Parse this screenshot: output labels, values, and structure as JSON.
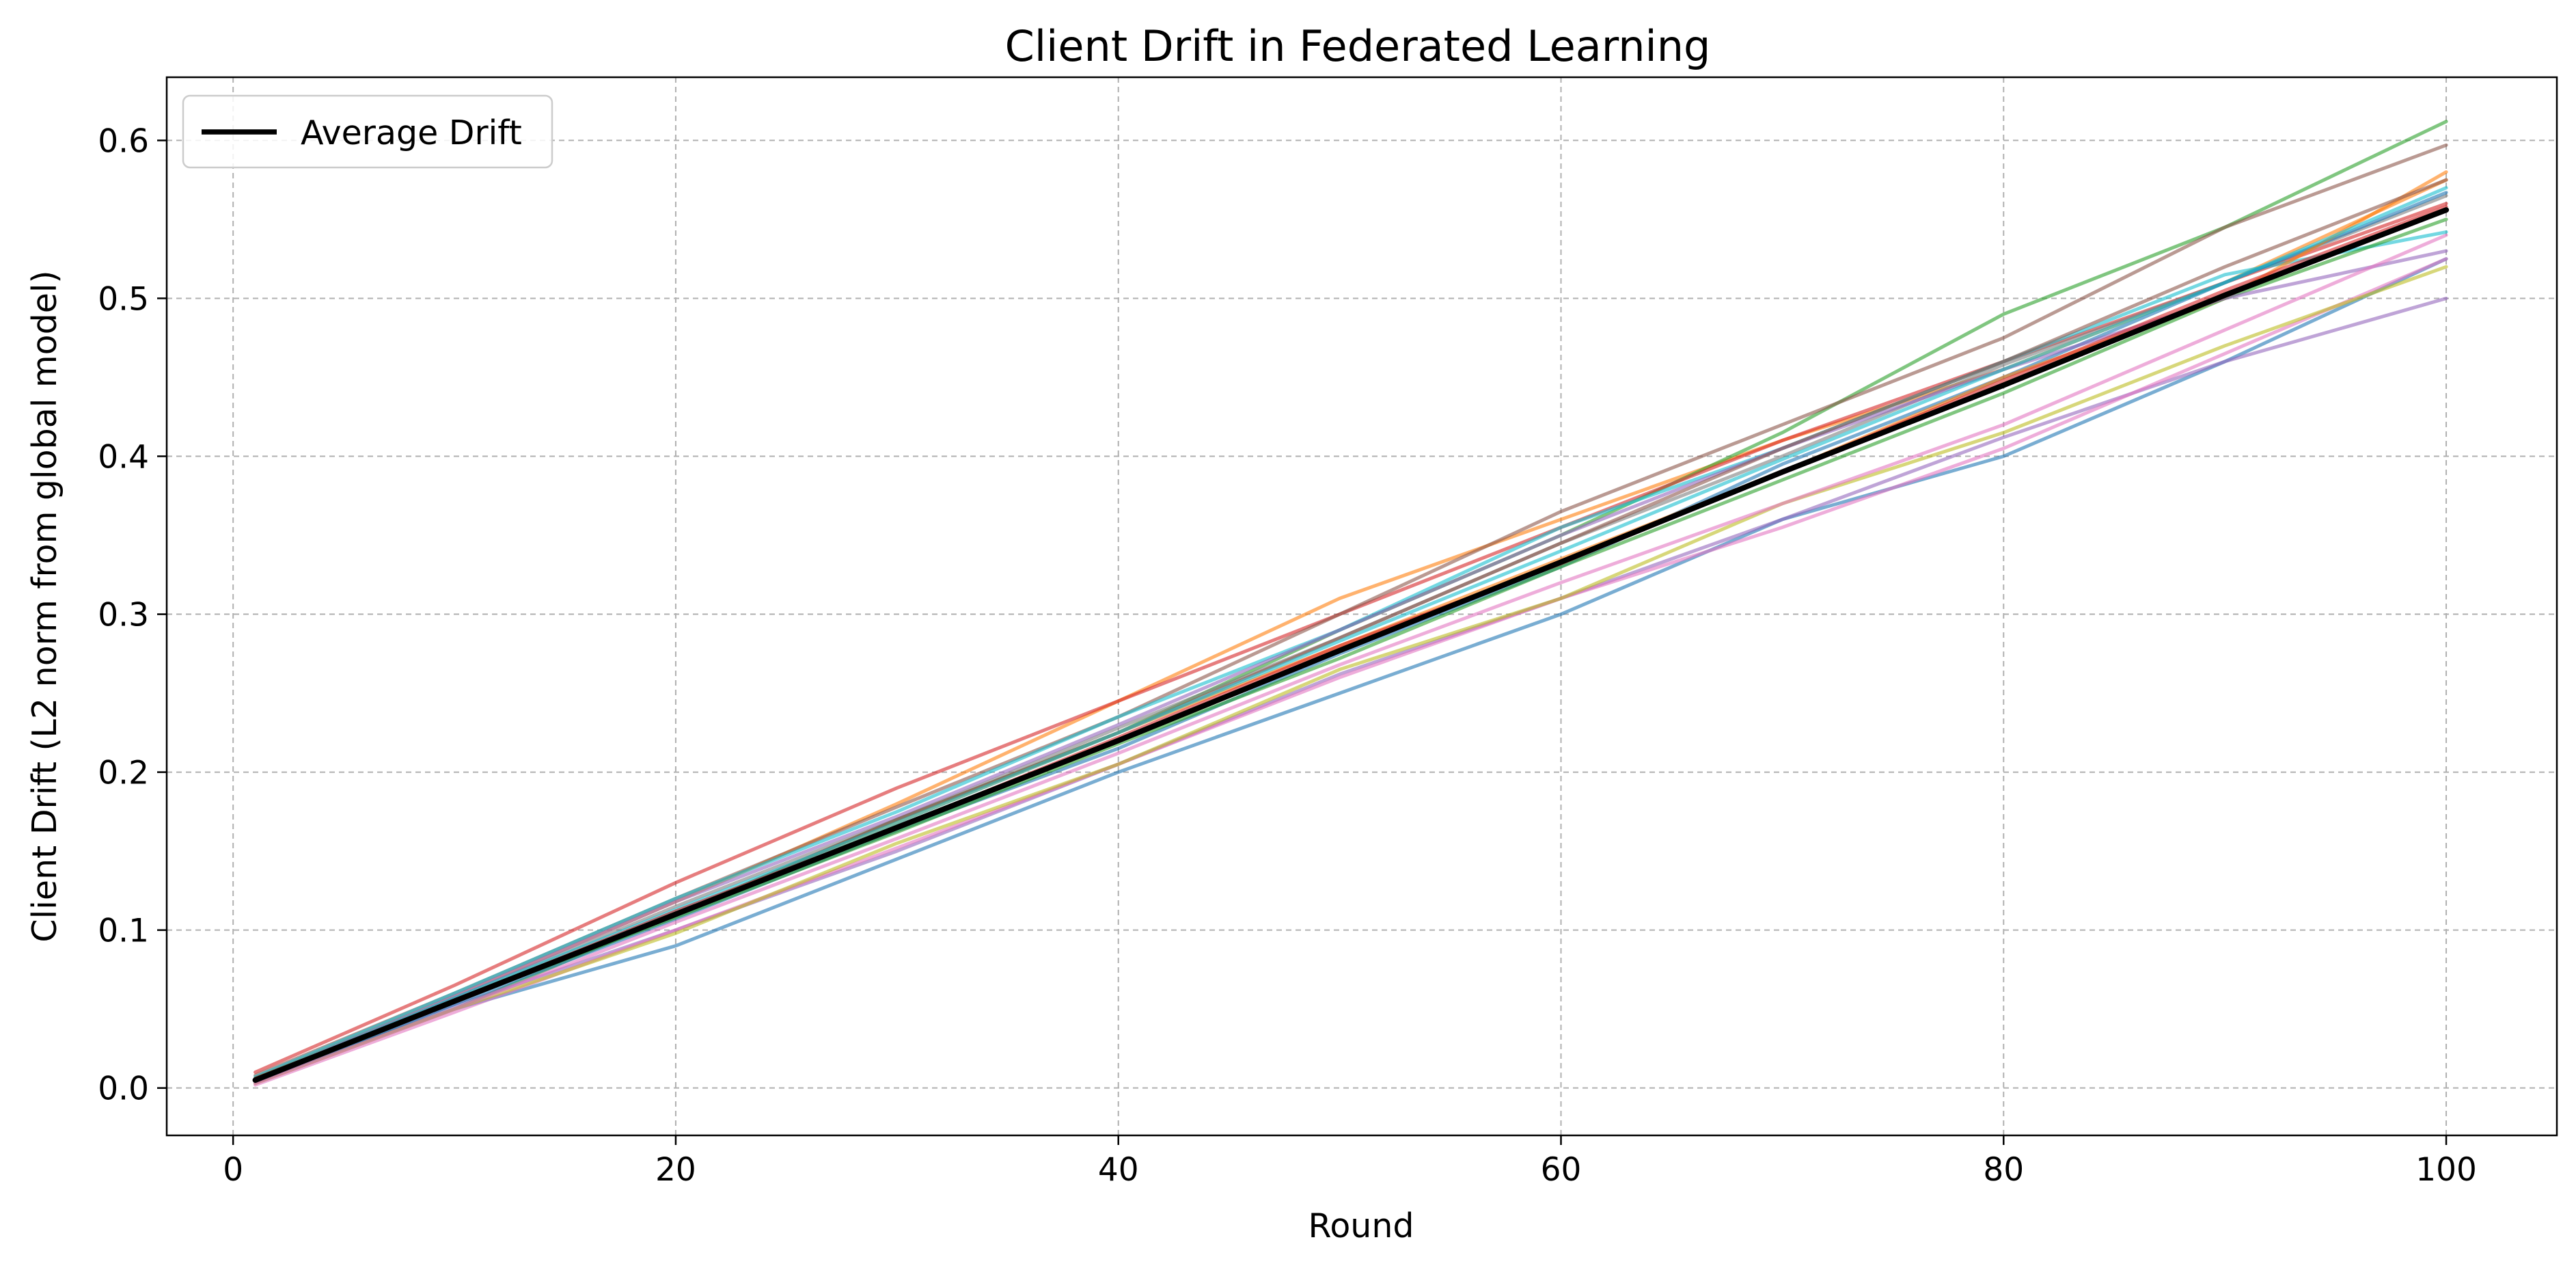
{
  "chart_data": {
    "type": "line",
    "title": "Client Drift in Federated Learning",
    "xlabel": "Round",
    "ylabel": "Client Drift (L2 norm from global model)",
    "xlim": [
      -3,
      105
    ],
    "ylim": [
      -0.03,
      0.64
    ],
    "xticks": [
      0,
      20,
      40,
      60,
      80,
      100
    ],
    "yticks": [
      0.0,
      0.1,
      0.2,
      0.3,
      0.4,
      0.5,
      0.6
    ],
    "grid": true,
    "legend": {
      "location": "upper-left",
      "entries": [
        "Average Drift"
      ]
    },
    "average": {
      "name": "Average Drift",
      "color": "#000000",
      "x": [
        1,
        10,
        20,
        30,
        40,
        50,
        60,
        70,
        80,
        90,
        100
      ],
      "y": [
        0.005,
        0.055,
        0.11,
        0.165,
        0.22,
        0.277,
        0.333,
        0.39,
        0.445,
        0.502,
        0.556
      ]
    },
    "client_series": [
      {
        "color": "#1f77b4",
        "x": [
          1,
          10,
          20,
          30,
          40,
          50,
          55,
          60,
          70,
          80,
          90,
          100
        ],
        "y": [
          0.003,
          0.05,
          0.09,
          0.145,
          0.2,
          0.25,
          0.275,
          0.3,
          0.36,
          0.4,
          0.46,
          0.525
        ]
      },
      {
        "color": "#ff7f0e",
        "x": [
          1,
          10,
          20,
          30,
          40,
          50,
          60,
          70,
          80,
          90,
          100
        ],
        "y": [
          0.006,
          0.058,
          0.118,
          0.18,
          0.245,
          0.31,
          0.36,
          0.41,
          0.455,
          0.51,
          0.575
        ]
      },
      {
        "color": "#2ca02c",
        "x": [
          1,
          10,
          20,
          30,
          40,
          50,
          60,
          70,
          80,
          90,
          100
        ],
        "y": [
          0.005,
          0.05,
          0.11,
          0.17,
          0.225,
          0.29,
          0.35,
          0.415,
          0.49,
          0.545,
          0.612
        ]
      },
      {
        "color": "#d62728",
        "x": [
          1,
          10,
          20,
          30,
          40,
          50,
          60,
          70,
          80,
          90,
          100
        ],
        "y": [
          0.01,
          0.065,
          0.13,
          0.19,
          0.245,
          0.3,
          0.355,
          0.41,
          0.46,
          0.51,
          0.56
        ]
      },
      {
        "color": "#9467bd",
        "x": [
          1,
          10,
          20,
          30,
          40,
          50,
          60,
          70,
          80,
          90,
          100
        ],
        "y": [
          0.004,
          0.052,
          0.1,
          0.15,
          0.205,
          0.262,
          0.31,
          0.36,
          0.412,
          0.46,
          0.5
        ]
      },
      {
        "color": "#8c564b",
        "x": [
          1,
          10,
          20,
          30,
          40,
          50,
          60,
          70,
          80,
          90,
          100
        ],
        "y": [
          0.008,
          0.06,
          0.12,
          0.178,
          0.235,
          0.3,
          0.365,
          0.42,
          0.475,
          0.545,
          0.597
        ]
      },
      {
        "color": "#e377c2",
        "x": [
          1,
          10,
          20,
          30,
          40,
          50,
          60,
          70,
          80,
          90,
          100
        ],
        "y": [
          0.002,
          0.048,
          0.1,
          0.152,
          0.205,
          0.26,
          0.31,
          0.355,
          0.405,
          0.465,
          0.525
        ]
      },
      {
        "color": "#7f7f7f",
        "x": [
          1,
          10,
          20,
          30,
          40,
          50,
          60,
          70,
          80,
          90,
          100
        ],
        "y": [
          0.006,
          0.057,
          0.115,
          0.17,
          0.228,
          0.285,
          0.345,
          0.4,
          0.458,
          0.51,
          0.565
        ]
      },
      {
        "color": "#bcbd22",
        "x": [
          1,
          10,
          20,
          30,
          40,
          50,
          60,
          70,
          80,
          90,
          100
        ],
        "y": [
          0.003,
          0.05,
          0.098,
          0.155,
          0.205,
          0.265,
          0.31,
          0.37,
          0.415,
          0.47,
          0.52
        ]
      },
      {
        "color": "#17becf",
        "x": [
          1,
          10,
          20,
          30,
          40,
          50,
          60,
          70,
          80,
          90,
          100
        ],
        "y": [
          0.007,
          0.06,
          0.12,
          0.175,
          0.235,
          0.29,
          0.355,
          0.405,
          0.46,
          0.515,
          0.542
        ]
      },
      {
        "color": "#1f77b4",
        "x": [
          1,
          10,
          20,
          30,
          40,
          50,
          60,
          70,
          80,
          90,
          100
        ],
        "y": [
          0.004,
          0.053,
          0.107,
          0.163,
          0.215,
          0.275,
          0.33,
          0.395,
          0.45,
          0.51,
          0.567
        ]
      },
      {
        "color": "#ff7f0e",
        "x": [
          1,
          10,
          20,
          30,
          40,
          50,
          60,
          70,
          80,
          90,
          100
        ],
        "y": [
          0.005,
          0.055,
          0.11,
          0.168,
          0.225,
          0.28,
          0.335,
          0.39,
          0.45,
          0.5,
          0.58
        ]
      },
      {
        "color": "#2ca02c",
        "x": [
          1,
          10,
          20,
          30,
          40,
          50,
          60,
          70,
          80,
          90,
          100
        ],
        "y": [
          0.006,
          0.055,
          0.108,
          0.162,
          0.218,
          0.272,
          0.33,
          0.385,
          0.44,
          0.5,
          0.55
        ]
      },
      {
        "color": "#9467bd",
        "x": [
          1,
          10,
          20,
          30,
          40,
          50,
          60,
          70,
          80,
          90,
          100
        ],
        "y": [
          0.005,
          0.058,
          0.118,
          0.172,
          0.23,
          0.29,
          0.35,
          0.405,
          0.455,
          0.5,
          0.53
        ]
      },
      {
        "color": "#8c564b",
        "x": [
          1,
          10,
          20,
          30,
          40,
          50,
          60,
          70,
          80,
          90,
          100
        ],
        "y": [
          0.004,
          0.055,
          0.11,
          0.17,
          0.225,
          0.285,
          0.345,
          0.405,
          0.46,
          0.52,
          0.575
        ]
      },
      {
        "color": "#e377c2",
        "x": [
          1,
          10,
          20,
          30,
          40,
          50,
          60,
          70,
          80,
          90,
          100
        ],
        "y": [
          0.003,
          0.05,
          0.105,
          0.158,
          0.212,
          0.268,
          0.32,
          0.37,
          0.42,
          0.48,
          0.54
        ]
      },
      {
        "color": "#17becf",
        "x": [
          1,
          10,
          20,
          30,
          40,
          50,
          60,
          70,
          80,
          90,
          100
        ],
        "y": [
          0.005,
          0.057,
          0.113,
          0.168,
          0.225,
          0.283,
          0.34,
          0.398,
          0.455,
          0.51,
          0.57
        ]
      },
      {
        "color": "#d62728",
        "x": [
          1,
          10,
          20,
          30,
          40,
          50,
          60,
          70,
          80,
          90,
          100
        ],
        "y": [
          0.006,
          0.055,
          0.112,
          0.165,
          0.222,
          0.28,
          0.332,
          0.39,
          0.448,
          0.505,
          0.558
        ]
      }
    ]
  }
}
